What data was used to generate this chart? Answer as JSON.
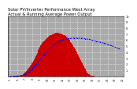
{
  "title_line1": "Solar PV/Inverter Performance West Array",
  "title_line2": "Actual & Running Average Power Output",
  "title_fontsize": 3.8,
  "bg_color": "#ffffff",
  "plot_bg_color": "#aaaaaa",
  "bar_color": "#cc0000",
  "line_color": "#0000ff",
  "grid_color": "#ffffff",
  "ylabel_fontsize": 3.0,
  "ylim": [
    0,
    10
  ],
  "fine_bar_x": [
    5.0,
    5.1,
    5.2,
    5.3,
    5.4,
    5.5,
    5.6,
    5.7,
    5.8,
    5.9,
    6.0,
    6.1,
    6.2,
    6.3,
    6.4,
    6.5,
    6.6,
    6.7,
    6.8,
    6.9,
    7.0,
    7.1,
    7.2,
    7.3,
    7.4,
    7.5,
    7.6,
    7.7,
    7.8,
    7.9,
    8.0,
    8.1,
    8.2,
    8.3,
    8.4,
    8.5,
    8.6,
    8.7,
    8.8,
    8.9,
    9.0,
    9.1,
    9.2,
    9.3,
    9.4,
    9.5,
    9.6,
    9.7,
    9.8,
    9.9,
    10.0,
    10.1,
    10.2,
    10.3,
    10.4,
    10.5,
    10.6,
    10.7,
    10.8,
    10.9,
    11.0,
    11.1,
    11.2,
    11.3,
    11.4,
    11.5,
    11.6,
    11.7,
    11.8,
    11.9,
    12.0,
    12.1,
    12.2,
    12.3,
    12.4,
    12.5,
    12.6,
    12.7,
    12.8,
    12.9,
    13.0,
    13.1,
    13.2,
    13.3,
    13.4,
    13.5,
    13.6,
    13.7,
    13.8,
    13.9,
    14.0,
    14.1,
    14.2,
    14.3,
    14.4,
    14.5,
    14.6,
    14.7,
    14.8,
    14.9,
    15.0,
    15.1,
    15.2,
    15.3,
    15.4,
    15.5,
    15.6,
    15.7,
    15.8,
    15.9,
    16.0,
    16.1,
    16.2,
    16.3,
    16.4,
    16.5,
    16.6,
    16.7,
    16.8,
    16.9,
    17.0,
    17.1,
    17.2,
    17.3,
    17.4,
    17.5,
    17.6,
    17.7,
    17.8,
    17.9,
    18.0,
    18.1,
    18.2,
    18.3,
    18.4,
    18.5,
    18.6,
    18.7,
    18.8,
    18.9,
    19.0,
    19.1,
    19.2,
    19.3,
    19.4,
    19.5
  ],
  "fine_bar_h": [
    0.0,
    0.0,
    0.0,
    0.01,
    0.01,
    0.01,
    0.02,
    0.02,
    0.03,
    0.04,
    0.05,
    0.07,
    0.09,
    0.12,
    0.15,
    0.2,
    0.25,
    0.32,
    0.4,
    0.5,
    0.62,
    0.75,
    0.9,
    1.05,
    1.2,
    1.38,
    1.55,
    1.72,
    1.9,
    2.1,
    2.3,
    2.55,
    2.8,
    3.05,
    3.3,
    3.6,
    3.85,
    4.1,
    4.35,
    4.6,
    4.85,
    5.1,
    5.3,
    5.5,
    5.65,
    5.8,
    5.95,
    6.1,
    6.25,
    6.38,
    6.5,
    6.6,
    6.7,
    6.78,
    6.85,
    6.9,
    6.95,
    7.0,
    7.05,
    7.1,
    7.15,
    7.2,
    7.2,
    7.2,
    7.2,
    7.2,
    7.15,
    7.1,
    7.05,
    7.0,
    6.95,
    6.9,
    6.85,
    6.8,
    6.7,
    6.6,
    6.5,
    6.35,
    6.2,
    6.05,
    5.9,
    5.72,
    5.55,
    5.35,
    5.15,
    4.95,
    4.72,
    4.5,
    4.25,
    4.0,
    3.75,
    3.5,
    3.22,
    2.95,
    2.68,
    2.4,
    2.15,
    1.9,
    1.65,
    1.42,
    1.2,
    1.0,
    0.82,
    0.65,
    0.5,
    0.38,
    0.28,
    0.2,
    0.14,
    0.09,
    0.05,
    0.03,
    0.02,
    0.01,
    0.01,
    0.0,
    0.0,
    0.0,
    0.0,
    0.0,
    0.0,
    0.0,
    0.0,
    0.0,
    0.0,
    0.0,
    0.0,
    0.0,
    0.0,
    0.0,
    0.0,
    0.0,
    0.0,
    0.0,
    0.0,
    0.0,
    0.0,
    0.0,
    0.0,
    0.0,
    0.0,
    0.0,
    0.0,
    0.0,
    0.0,
    0.0
  ],
  "fine_avg_x": [
    5.0,
    5.5,
    6.0,
    6.5,
    7.0,
    7.5,
    8.0,
    8.5,
    9.0,
    9.5,
    10.0,
    10.5,
    11.0,
    11.5,
    12.0,
    12.5,
    13.0,
    13.5,
    14.0,
    14.5,
    15.0,
    15.5,
    16.0,
    16.5,
    17.0,
    17.5,
    18.0,
    18.5,
    19.0,
    19.5
  ],
  "fine_avg_h": [
    0.0,
    0.01,
    0.03,
    0.1,
    0.3,
    0.7,
    1.3,
    2.0,
    2.8,
    3.6,
    4.3,
    4.9,
    5.4,
    5.8,
    6.05,
    6.2,
    6.3,
    6.35,
    6.35,
    6.32,
    6.25,
    6.15,
    6.0,
    5.85,
    5.68,
    5.5,
    5.3,
    5.1,
    4.85,
    4.6
  ]
}
